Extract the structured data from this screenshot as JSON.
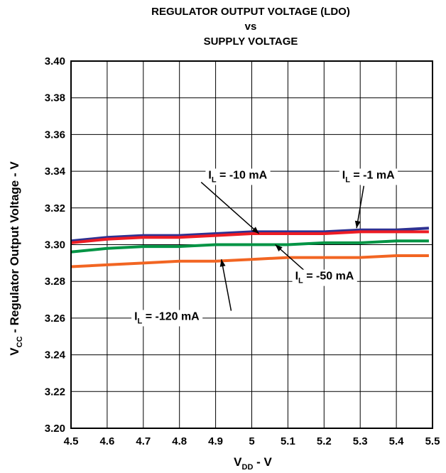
{
  "chart_data": {
    "type": "line",
    "title_lines": [
      "REGULATOR OUTPUT VOLTAGE (LDO)",
      "vs",
      "SUPPLY VOLTAGE"
    ],
    "xlabel": {
      "main": "V",
      "sub": "DD",
      "suffix": " - V"
    },
    "ylabel": {
      "main": "V",
      "sub": "CC",
      "suffix": " - Regulator Output Voltage - V"
    },
    "xlim": [
      4.5,
      5.5
    ],
    "ylim": [
      3.2,
      3.4
    ],
    "xticks": [
      "4.5",
      "4.6",
      "4.7",
      "4.8",
      "4.9",
      "5",
      "5.1",
      "5.2",
      "5.3",
      "5.4",
      "5.5"
    ],
    "yticks": [
      "3.20",
      "3.22",
      "3.24",
      "3.26",
      "3.28",
      "3.30",
      "3.32",
      "3.34",
      "3.36",
      "3.38",
      "3.40"
    ],
    "grid": true,
    "series": [
      {
        "name": "I_L = -1 mA",
        "color": "#2e3192",
        "x": [
          4.5,
          4.6,
          4.7,
          4.8,
          4.9,
          5.0,
          5.1,
          5.2,
          5.3,
          5.4,
          5.49
        ],
        "y": [
          3.302,
          3.304,
          3.305,
          3.305,
          3.306,
          3.307,
          3.307,
          3.307,
          3.308,
          3.308,
          3.309
        ]
      },
      {
        "name": "I_L = -10 mA",
        "color": "#ed1c24",
        "x": [
          4.5,
          4.6,
          4.7,
          4.8,
          4.9,
          5.0,
          5.1,
          5.2,
          5.3,
          5.4,
          5.49
        ],
        "y": [
          3.301,
          3.303,
          3.304,
          3.304,
          3.305,
          3.306,
          3.306,
          3.306,
          3.307,
          3.307,
          3.307
        ]
      },
      {
        "name": "I_L = -50 mA",
        "color": "#009444",
        "x": [
          4.5,
          4.6,
          4.7,
          4.8,
          4.9,
          5.0,
          5.1,
          5.2,
          5.3,
          5.4,
          5.49
        ],
        "y": [
          3.296,
          3.298,
          3.299,
          3.299,
          3.3,
          3.3,
          3.3,
          3.301,
          3.301,
          3.302,
          3.302
        ]
      },
      {
        "name": "I_L = -120 mA",
        "color": "#f26522",
        "x": [
          4.5,
          4.6,
          4.7,
          4.8,
          4.9,
          5.0,
          5.1,
          5.2,
          5.3,
          5.4,
          5.49
        ],
        "y": [
          3.288,
          3.289,
          3.29,
          3.291,
          3.291,
          3.292,
          3.293,
          3.293,
          3.293,
          3.294,
          3.294
        ]
      }
    ],
    "annotations": [
      {
        "main": "I",
        "sub": "L",
        "text": " = -10 mA",
        "tx": 4.88,
        "ty": 3.336,
        "ax": 4.86,
        "ay": 3.334,
        "px": 5.02,
        "py": 3.306
      },
      {
        "main": "I",
        "sub": "L",
        "text": " = -1 mA",
        "tx": 5.25,
        "ty": 3.336,
        "ax": 5.31,
        "ay": 3.332,
        "px": 5.29,
        "py": 3.309
      },
      {
        "main": "I",
        "sub": "L",
        "text": " = -50 mA",
        "tx": 5.12,
        "ty": 3.281,
        "ax": 5.145,
        "ay": 3.286,
        "px": 5.065,
        "py": 3.3
      },
      {
        "main": "I",
        "sub": "L",
        "text": " = -120 mA",
        "tx": 4.675,
        "ty": 3.259,
        "ax": 4.943,
        "ay": 3.264,
        "px": 4.916,
        "py": 3.292
      }
    ]
  }
}
